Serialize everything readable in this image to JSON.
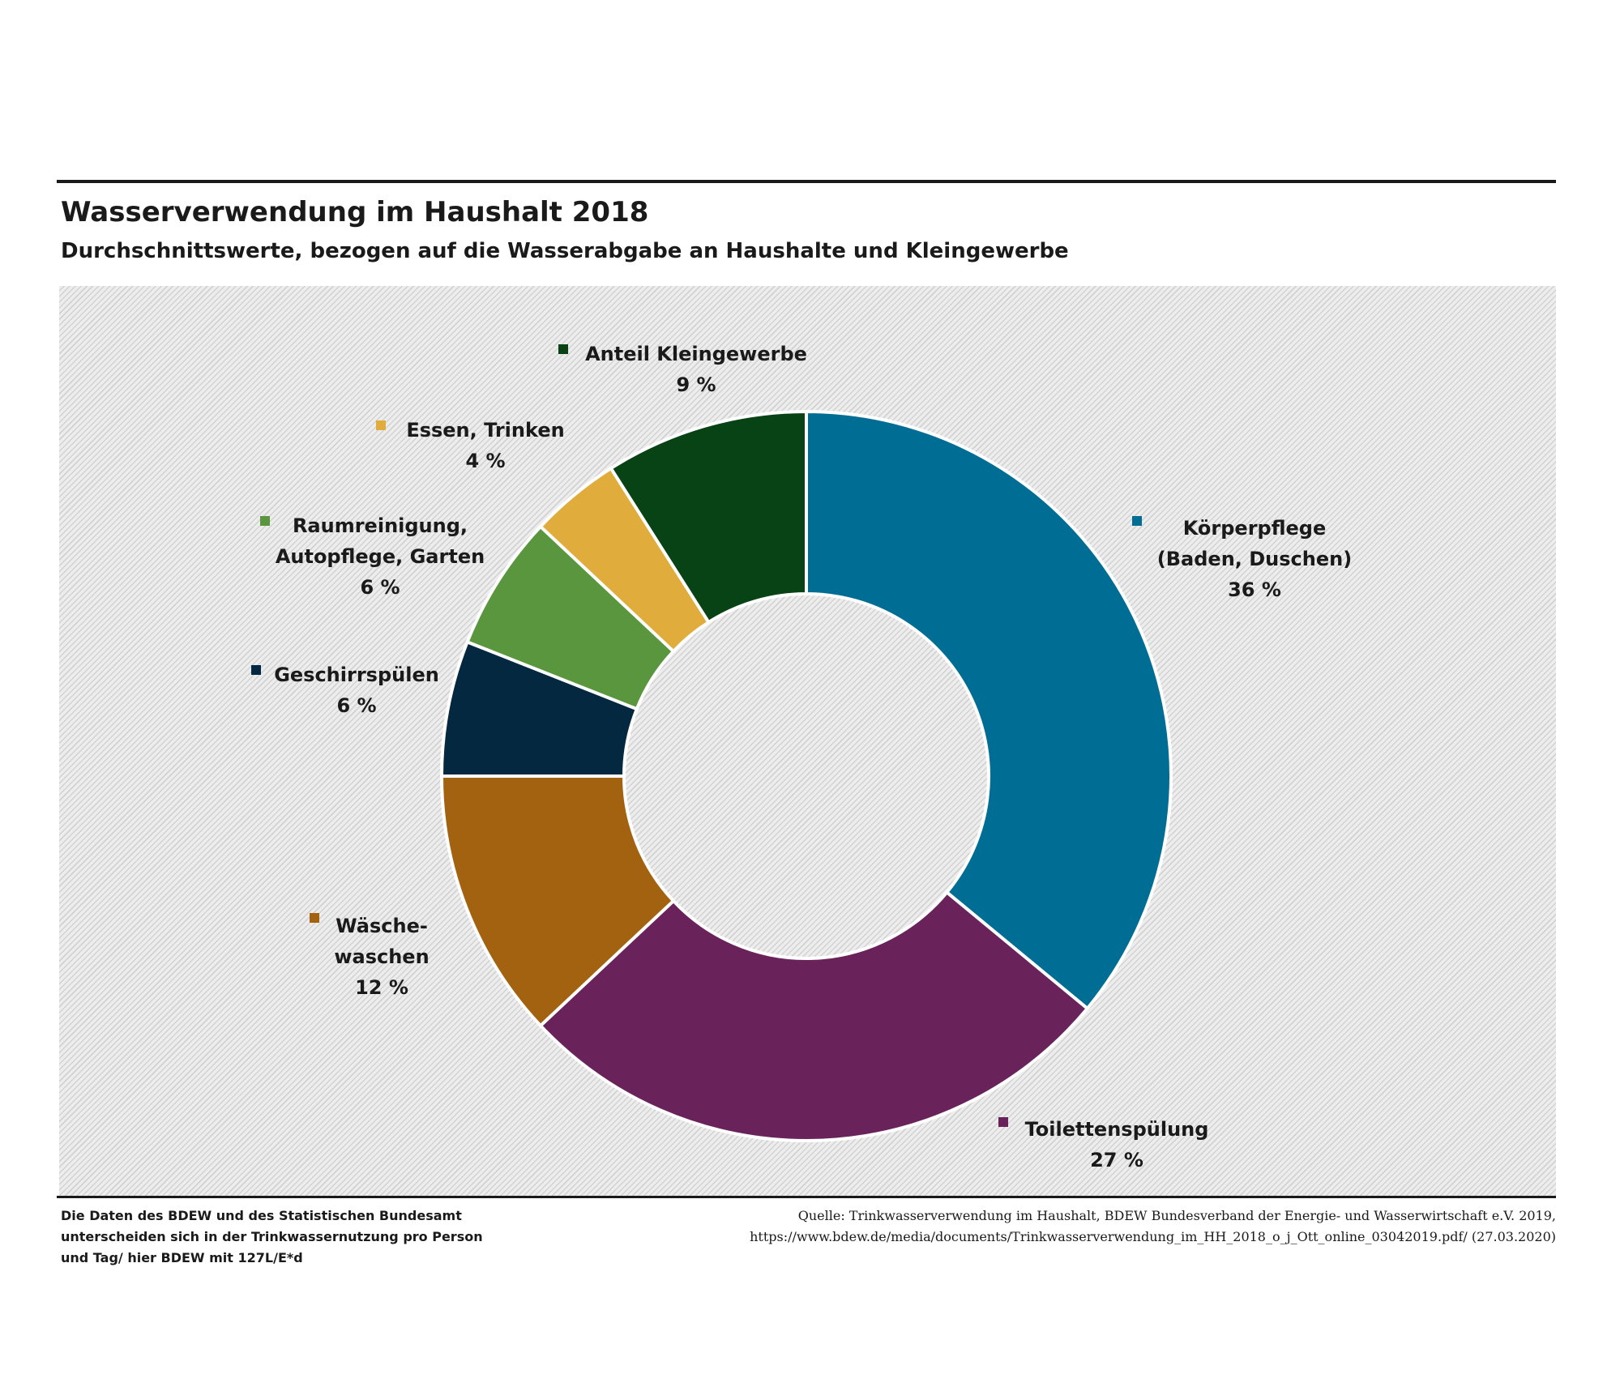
{
  "header": {
    "title": "Wasserverwendung im Haushalt 2018",
    "subtitle": "Durchschnittswerte, bezogen auf die Wasserabgabe an Haushalte und Kleingewerbe"
  },
  "footer": {
    "note_left": "Die Daten des BDEW und des Statistischen Bundesamt unterscheiden sich in der Trinkwassernutzung pro Person und Tag/ hier BDEW mit 127L/E*d",
    "source_line1": "Quelle: Trinkwasserverwendung im Haushalt, BDEW Bundesverband der Energie- und Wasserwirtschaft e.V. 2019,",
    "source_line2": "https://www.bdew.de/media/documents/Trinkwasserverwendung_im_HH_2018_o_j_Ott_online_03042019.pdf/ (27.03.2020)"
  },
  "chart_data": {
    "type": "pie",
    "donut": true,
    "title": "Wasserverwendung im Haushalt 2018",
    "subtitle": "Durchschnittswerte, bezogen auf die Wasserabgabe an Haushalte und Kleingewerbe",
    "unit": "%",
    "start": "12 o'clock, clockwise",
    "slices": [
      {
        "key": "koerperpflege",
        "label_lines": [
          "Körperpflege",
          "(Baden, Duschen)"
        ],
        "value": 36,
        "value_text": "36 %",
        "color": "#006e94"
      },
      {
        "key": "toilettenspuelung",
        "label_lines": [
          "Toilettenspülung"
        ],
        "value": 27,
        "value_text": "27 %",
        "color": "#69235a"
      },
      {
        "key": "waeschewaschen",
        "label_lines": [
          "Wäsche-",
          "waschen"
        ],
        "value": 12,
        "value_text": "12 %",
        "color": "#a2620f"
      },
      {
        "key": "geschirrspuelen",
        "label_lines": [
          "Geschirrspülen"
        ],
        "value": 6,
        "value_text": "6 %",
        "color": "#032840"
      },
      {
        "key": "raumreinigung",
        "label_lines": [
          "Raumreinigung,",
          "Autopflege, Garten"
        ],
        "value": 6,
        "value_text": "6 %",
        "color": "#5a963e"
      },
      {
        "key": "essen_trinken",
        "label_lines": [
          "Essen, Trinken"
        ],
        "value": 4,
        "value_text": "4 %",
        "color": "#e0ac3c"
      },
      {
        "key": "kleingewerbe",
        "label_lines": [
          "Anteil Kleingewerbe"
        ],
        "value": 9,
        "value_text": "9 %",
        "color": "#074314"
      }
    ]
  }
}
